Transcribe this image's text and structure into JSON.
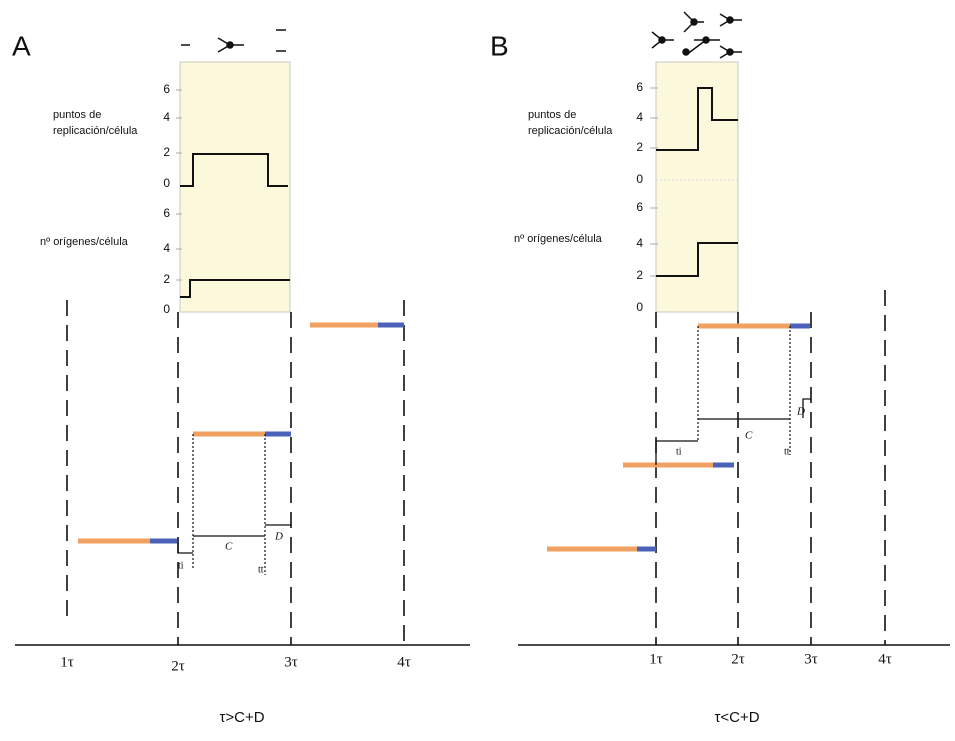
{
  "panel_a": {
    "label": "A",
    "y_label_top": [
      "puntos de",
      "replicación/célula"
    ],
    "y_label_bottom": "nº orígenes/célula",
    "top_ticks": [
      "6",
      "4",
      "2",
      "0"
    ],
    "bottom_ticks": [
      "6",
      "4",
      "2",
      "0"
    ],
    "x_ticks": [
      "1τ",
      "2τ",
      "3τ",
      "4τ"
    ],
    "segment_c": "C",
    "segment_d": "D",
    "t_i": "ti",
    "t_t": "tt",
    "condition": "τ>C+D"
  },
  "panel_b": {
    "label": "B",
    "y_label_top": [
      "puntos de",
      "replicación/célula"
    ],
    "y_label_bottom": "nº orígenes/célula",
    "top_ticks": [
      "6",
      "4",
      "2",
      "0"
    ],
    "bottom_ticks": [
      "6",
      "4",
      "2",
      "0"
    ],
    "x_ticks": [
      "1τ",
      "2τ",
      "3τ",
      "4τ"
    ],
    "segment_c": "C",
    "segment_d": "D",
    "t_i": "ti",
    "t_t": "tt",
    "condition": "τ<C+D"
  }
}
